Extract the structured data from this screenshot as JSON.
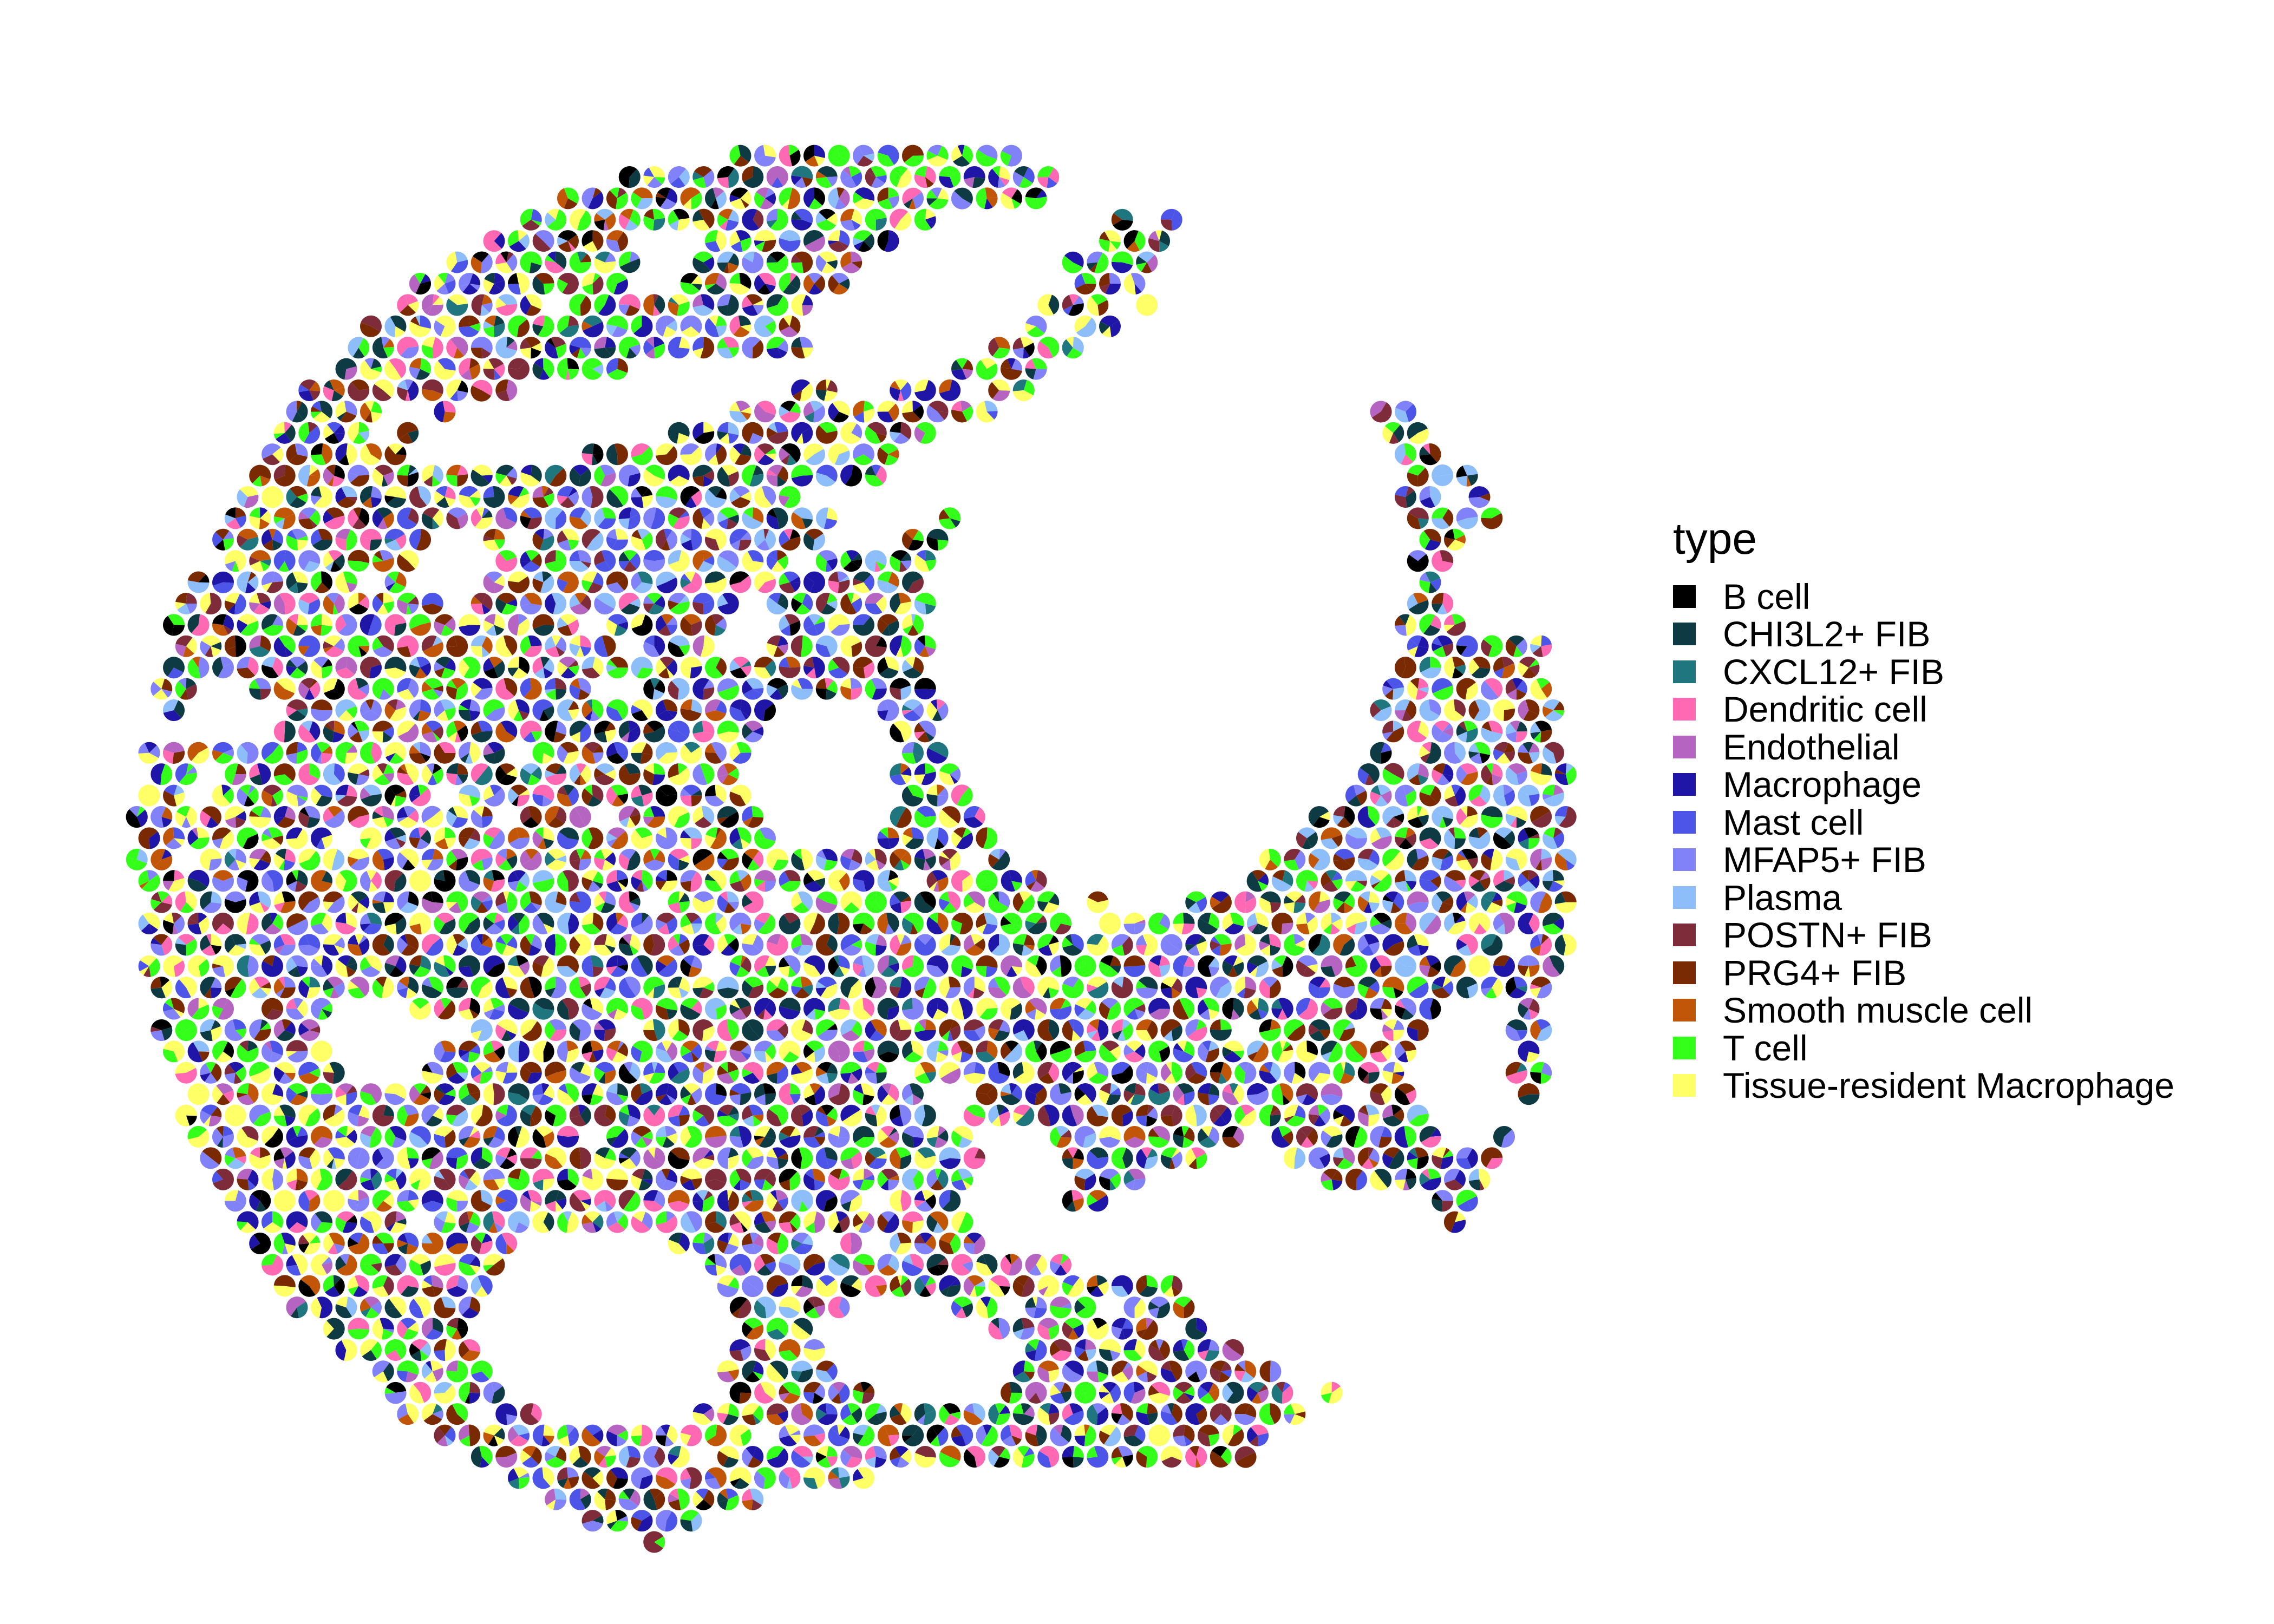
{
  "chart_data": {
    "type": "scatter",
    "subtype": "spatial scatter-pie (each spot is a pie of cell-type proportions)",
    "title": "",
    "xlabel": "",
    "ylabel": "",
    "axes_visible": false,
    "grid": false,
    "legend_position": "right",
    "legend": {
      "title": "type",
      "items": [
        {
          "label": "B cell",
          "color": "#000000"
        },
        {
          "label": "CHI3L2+ FIB",
          "color": "#0E3B43"
        },
        {
          "label": "CXCL12+ FIB",
          "color": "#20767F"
        },
        {
          "label": "Dendritic cell",
          "color": "#FF69B4"
        },
        {
          "label": "Endothelial",
          "color": "#B565C1"
        },
        {
          "label": "Macrophage",
          "color": "#1F15A6"
        },
        {
          "label": "Mast cell",
          "color": "#4C55E8"
        },
        {
          "label": "MFAP5+ FIB",
          "color": "#8182F8"
        },
        {
          "label": "Plasma",
          "color": "#8DBEFA"
        },
        {
          "label": "POSTN+ FIB",
          "color": "#7E2C3A"
        },
        {
          "label": "PRG4+ FIB",
          "color": "#7A2A02"
        },
        {
          "label": "Smooth muscle cell",
          "color": "#C25608"
        },
        {
          "label": "T cell",
          "color": "#33FF1A"
        },
        {
          "label": "Tissue-resident Macrophage",
          "color": "#FFFF66"
        }
      ]
    },
    "spot_grid": "hexagonal lattice of Visium-style spots forming a roughly circular tissue section with irregular tissue regions and gaps"
  }
}
